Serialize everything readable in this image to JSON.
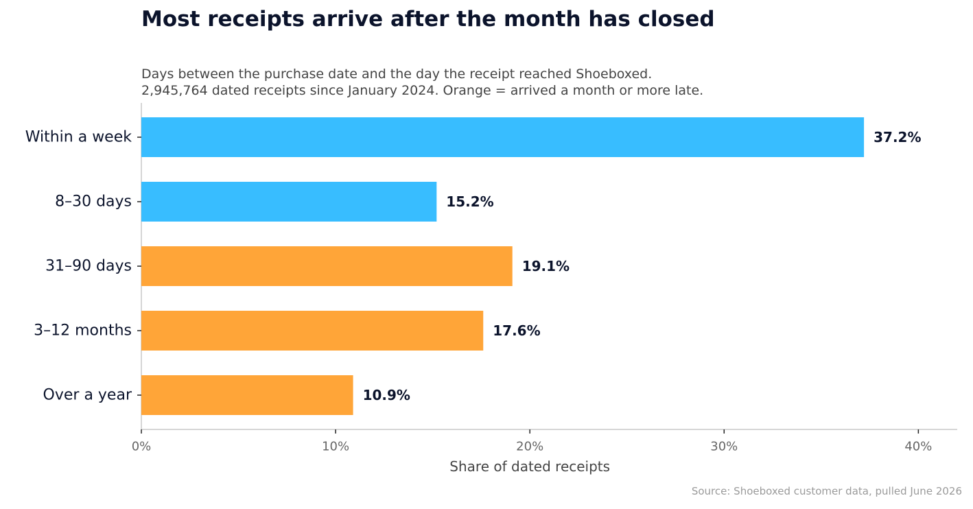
{
  "header": {
    "title": "Most receipts arrive after the month has closed",
    "subtitle_lines": [
      "Days between the purchase date and the day the receipt reached Shoeboxed.",
      "2,945,764 dated receipts since January 2024. Orange = arrived a month or more late."
    ]
  },
  "footer": {
    "source": "Source: Shoeboxed customer data, pulled June 2026"
  },
  "colors": {
    "on_time": "#38bdff",
    "late": "#ffa538",
    "axis": "#c8c8c8"
  },
  "chart_data": {
    "type": "bar",
    "orientation": "horizontal",
    "categories": [
      "Within a week",
      "8–30 days",
      "31–90 days",
      "3–12 months",
      "Over a year"
    ],
    "values": [
      37.2,
      15.2,
      19.1,
      17.6,
      10.9
    ],
    "value_labels": [
      "37.2%",
      "15.2%",
      "19.1%",
      "17.6%",
      "10.9%"
    ],
    "late": [
      false,
      false,
      true,
      true,
      true
    ],
    "xlabel": "Share of dated receipts",
    "ylabel": "",
    "xlim": [
      0,
      42
    ],
    "xticks": [
      0,
      10,
      20,
      30,
      40
    ],
    "xtick_labels": [
      "0%",
      "10%",
      "20%",
      "30%",
      "40%"
    ],
    "grid": false,
    "legend": "none"
  }
}
